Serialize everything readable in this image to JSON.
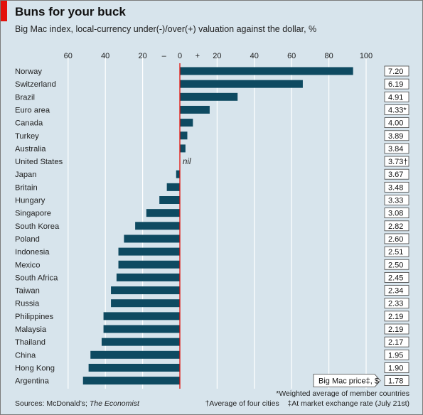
{
  "header": {
    "title": "Buns for your buck",
    "subtitle": "Big Mac index, local-currency under(-)/over(+) valuation against the dollar, %"
  },
  "colors": {
    "background": "#d7e4ec",
    "bar": "#0e4a61",
    "zero_line": "#e3120b",
    "brand_red": "#e3120b",
    "gridline": "#ffffff"
  },
  "footer": {
    "source_prefix": "Sources: McDonald’s; ",
    "source_italic": "The Economist",
    "note_weighted": "*Weighted average of member countries",
    "note_cities": "†Average of four cities",
    "note_exchange": "‡At market exchange rate (July 21st)"
  },
  "chart_data": {
    "type": "bar",
    "orientation": "horizontal",
    "title": "Buns for your buck",
    "subtitle": "Big Mac index, local-currency under(-)/over(+) valuation against the dollar, %",
    "x_ticks": [
      -60,
      -40,
      -20,
      0,
      20,
      40,
      60,
      80,
      100
    ],
    "x_tick_labels": [
      "60",
      "40",
      "20",
      "0",
      "20",
      "40",
      "60",
      "80",
      "100"
    ],
    "sign_labels": {
      "negative": "–",
      "positive": "+"
    },
    "xlim": [
      -62,
      104
    ],
    "grid": true,
    "nil_label": "nil",
    "price_column_label": "Big Mac price‡, $",
    "categories": [
      "Norway",
      "Switzerland",
      "Brazil",
      "Euro area",
      "Canada",
      "Turkey",
      "Australia",
      "United States",
      "Japan",
      "Britain",
      "Hungary",
      "Singapore",
      "South Korea",
      "Poland",
      "Indonesia",
      "Mexico",
      "South Africa",
      "Taiwan",
      "Russia",
      "Philippines",
      "Malaysia",
      "Thailand",
      "China",
      "Hong Kong",
      "Argentina"
    ],
    "values": [
      93,
      66,
      31,
      16,
      7,
      4,
      3,
      0,
      -2,
      -7,
      -11,
      -18,
      -24,
      -30,
      -33,
      -33,
      -34,
      -37,
      -37,
      -41,
      -41,
      -42,
      -48,
      -49,
      -52
    ],
    "prices": [
      "7.20",
      "6.19",
      "4.91",
      "4.33*",
      "4.00",
      "3.89",
      "3.84",
      "3.73†",
      "3.67",
      "3.48",
      "3.33",
      "3.08",
      "2.82",
      "2.60",
      "2.51",
      "2.50",
      "2.45",
      "2.34",
      "2.33",
      "2.19",
      "2.19",
      "2.17",
      "1.95",
      "1.90",
      "1.78"
    ]
  }
}
